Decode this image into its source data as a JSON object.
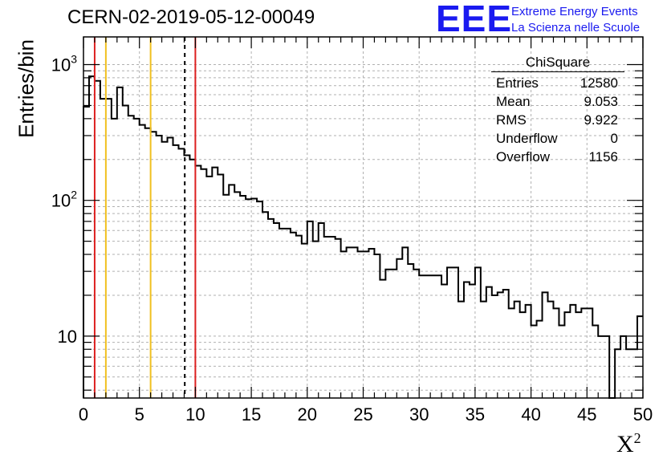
{
  "header": {
    "title": "CERN-02-2019-05-12-00049",
    "logo_text": "EEE",
    "logo_line1": "Extreme Energy Events",
    "logo_line2": "La Scienza nelle Scuole"
  },
  "colors": {
    "logo": "#1a1af0",
    "red_lines": "#dd2020",
    "yellow_lines": "#f0c020",
    "histogram": "#000000",
    "grid": "#b0b0b0"
  },
  "stats": {
    "title": "ChiSquare",
    "rows": [
      {
        "label": "Entries",
        "value": "12580"
      },
      {
        "label": "Mean",
        "value": "9.053"
      },
      {
        "label": "RMS",
        "value": "9.922"
      },
      {
        "label": "Underflow",
        "value": "0"
      },
      {
        "label": "Overflow",
        "value": "1156"
      }
    ]
  },
  "chart_data": {
    "type": "histogram",
    "title": "CERN-02-2019-05-12-00049",
    "xlabel": "X²",
    "ylabel": "Entries/bin",
    "xlim": [
      0,
      50
    ],
    "ylim": [
      3.5,
      1600
    ],
    "yscale": "log",
    "grid": true,
    "x_ticks": [
      0,
      5,
      10,
      15,
      20,
      25,
      30,
      35,
      40,
      45,
      50
    ],
    "y_ticks": [
      {
        "value": 10,
        "label": "10"
      },
      {
        "value": 100,
        "label": "10",
        "exp": "2"
      },
      {
        "value": 1000,
        "label": "10",
        "exp": "3"
      }
    ],
    "bin_width": 0.5,
    "bin_start": 0,
    "counts": [
      490,
      820,
      760,
      560,
      560,
      400,
      680,
      500,
      420,
      400,
      360,
      340,
      320,
      300,
      270,
      290,
      255,
      240,
      215,
      200,
      180,
      170,
      150,
      175,
      155,
      110,
      130,
      115,
      108,
      102,
      103,
      98,
      82,
      73,
      68,
      62,
      62,
      58,
      55,
      48,
      70,
      50,
      68,
      54,
      54,
      52,
      42,
      45,
      45,
      42,
      42,
      44,
      40,
      26,
      31,
      31,
      37,
      45,
      34,
      31,
      28,
      28,
      28,
      28,
      24,
      32,
      32,
      18,
      25,
      24,
      32,
      18,
      23,
      20,
      21,
      22,
      16,
      18,
      15,
      17,
      12,
      13,
      21,
      18,
      16,
      12,
      15,
      17,
      15,
      16,
      16,
      12,
      10,
      10,
      3.5,
      8,
      10,
      8,
      8,
      14
    ],
    "vertical_lines": [
      {
        "x": 1,
        "color": "red",
        "style": "solid"
      },
      {
        "x": 2,
        "color": "yellow",
        "style": "solid"
      },
      {
        "x": 6,
        "color": "yellow",
        "style": "solid"
      },
      {
        "x": 9.053,
        "color": "black",
        "style": "dashed"
      },
      {
        "x": 10,
        "color": "red",
        "style": "solid"
      }
    ]
  }
}
